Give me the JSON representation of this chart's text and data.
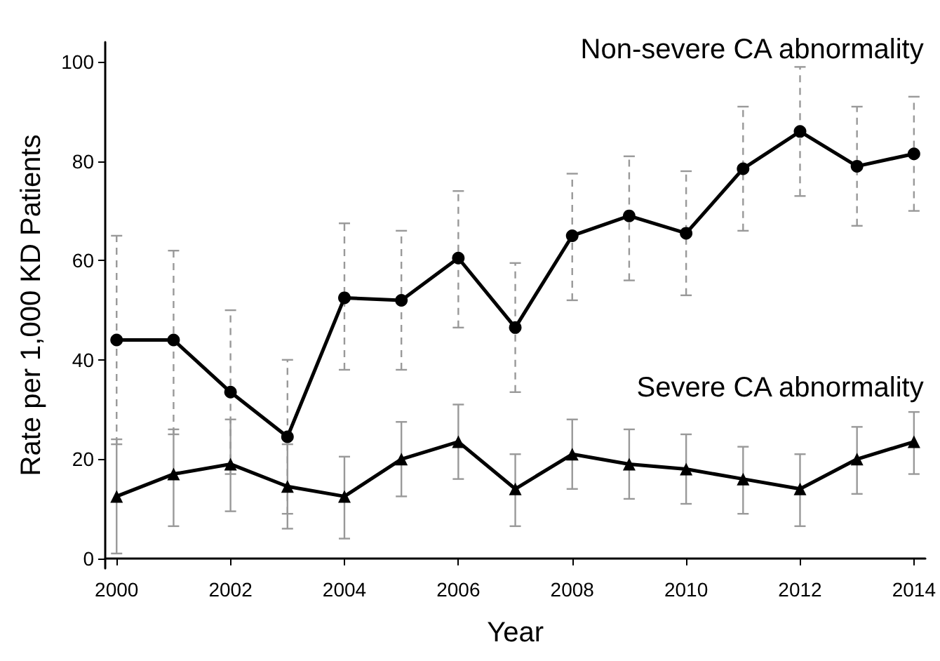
{
  "chart_data": {
    "type": "line",
    "xlabel": "Year",
    "ylabel": "Rate per 1,000 KD Patients",
    "x": [
      2000,
      2001,
      2002,
      2003,
      2004,
      2005,
      2006,
      2007,
      2008,
      2009,
      2010,
      2011,
      2012,
      2013,
      2014
    ],
    "series": [
      {
        "name": "Non-severe CA abnormality",
        "color": "#000000",
        "marker": "circle",
        "values": [
          44,
          44,
          33.5,
          24.5,
          52.5,
          52,
          60.5,
          46.5,
          65,
          69,
          65.5,
          78.5,
          86,
          79,
          81.5
        ],
        "errors": [
          [
            23,
            65
          ],
          [
            25,
            62
          ],
          [
            17,
            50
          ],
          [
            9,
            40
          ],
          [
            38,
            67.5
          ],
          [
            38,
            66
          ],
          [
            46.5,
            74
          ],
          [
            33.5,
            59.5
          ],
          [
            52,
            77.5
          ],
          [
            56,
            81
          ],
          [
            53,
            78
          ],
          [
            66,
            91
          ],
          [
            73,
            99
          ],
          [
            67,
            91
          ],
          [
            70,
            93
          ]
        ]
      },
      {
        "name": "Severe CA abnormality",
        "color": "#000000",
        "marker": "triangle",
        "values": [
          12.5,
          17,
          19,
          14.5,
          12.5,
          20,
          23.5,
          14,
          21,
          19,
          18,
          16,
          14,
          20,
          23.5
        ],
        "errors": [
          [
            1,
            24
          ],
          [
            6.5,
            26
          ],
          [
            9.5,
            28
          ],
          [
            6,
            23
          ],
          [
            4,
            20.5
          ],
          [
            12.5,
            27.5
          ],
          [
            16,
            31
          ],
          [
            6.5,
            21
          ],
          [
            14,
            28
          ],
          [
            12,
            26
          ],
          [
            11,
            25
          ],
          [
            9,
            22.5
          ],
          [
            6.5,
            21
          ],
          [
            13,
            26.5
          ],
          [
            17,
            29.5
          ]
        ]
      }
    ],
    "xlim": [
      1999.8,
      2014.2
    ],
    "xticks": [
      2000,
      2002,
      2004,
      2006,
      2008,
      2010,
      2012,
      2014
    ],
    "ylim": [
      -2,
      104
    ],
    "yticks": [
      0,
      20,
      40,
      60,
      80,
      100
    ],
    "grid": false,
    "legend": false,
    "line_style": "solid"
  }
}
